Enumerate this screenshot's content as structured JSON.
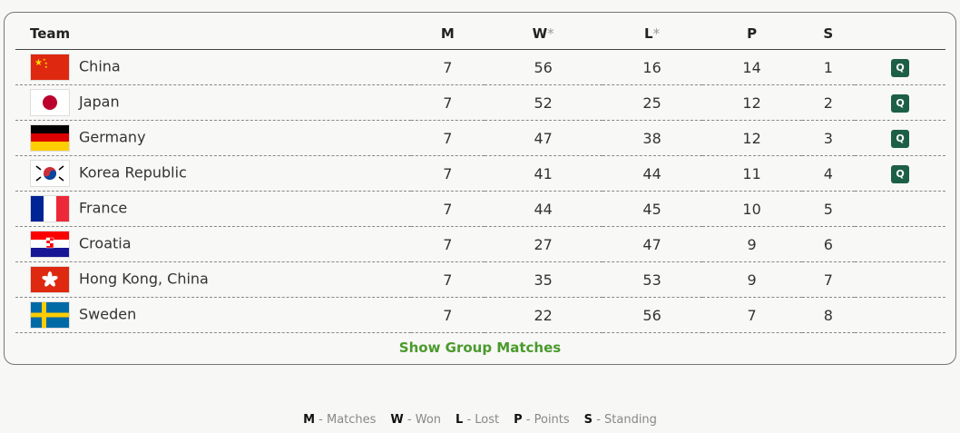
{
  "headers": {
    "team": "Team",
    "m": "M",
    "w": "W",
    "l": "L",
    "p": "P",
    "s": "S",
    "asterisk": "*"
  },
  "rows": [
    {
      "flag": "china",
      "team": "China",
      "m": "7",
      "w": "56",
      "l": "16",
      "p": "14",
      "s": "1",
      "q": "Q"
    },
    {
      "flag": "japan",
      "team": "Japan",
      "m": "7",
      "w": "52",
      "l": "25",
      "p": "12",
      "s": "2",
      "q": "Q"
    },
    {
      "flag": "germany",
      "team": "Germany",
      "m": "7",
      "w": "47",
      "l": "38",
      "p": "12",
      "s": "3",
      "q": "Q"
    },
    {
      "flag": "korea",
      "team": "Korea Republic",
      "m": "7",
      "w": "41",
      "l": "44",
      "p": "11",
      "s": "4",
      "q": "Q"
    },
    {
      "flag": "france",
      "team": "France",
      "m": "7",
      "w": "44",
      "l": "45",
      "p": "10",
      "s": "5",
      "q": ""
    },
    {
      "flag": "croatia",
      "team": "Croatia",
      "m": "7",
      "w": "27",
      "l": "47",
      "p": "9",
      "s": "6",
      "q": ""
    },
    {
      "flag": "hongkong",
      "team": "Hong Kong, China",
      "m": "7",
      "w": "35",
      "l": "53",
      "p": "9",
      "s": "7",
      "q": ""
    },
    {
      "flag": "sweden",
      "team": "Sweden",
      "m": "7",
      "w": "22",
      "l": "56",
      "p": "7",
      "s": "8",
      "q": ""
    }
  ],
  "show_matches": "Show Group Matches",
  "legend": [
    {
      "k": "M",
      "v": "- Matches"
    },
    {
      "k": "W",
      "v": "- Won"
    },
    {
      "k": "L",
      "v": "- Lost"
    },
    {
      "k": "P",
      "v": "- Points"
    },
    {
      "k": "S",
      "v": "- Standing"
    }
  ],
  "colors": {
    "qualified_badge": "#1d5f46",
    "link": "#4a9a2c"
  }
}
